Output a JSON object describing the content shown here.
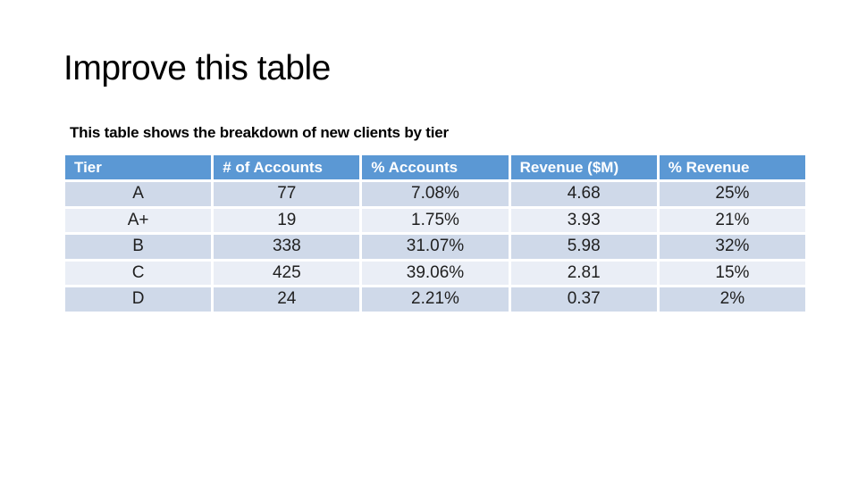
{
  "slide": {
    "title": "Improve this table",
    "subtitle": "This table shows the breakdown of new clients by tier"
  },
  "table": {
    "columns": [
      "Tier",
      "# of Accounts",
      "% Accounts",
      "Revenue ($M)",
      "% Revenue"
    ],
    "rows": [
      {
        "tier": "A",
        "accounts": "77",
        "pct_accounts": "7.08%",
        "revenue": "4.68",
        "pct_revenue": "25%"
      },
      {
        "tier": "A+",
        "accounts": "19",
        "pct_accounts": "1.75%",
        "revenue": "3.93",
        "pct_revenue": "21%"
      },
      {
        "tier": "B",
        "accounts": "338",
        "pct_accounts": "31.07%",
        "revenue": "5.98",
        "pct_revenue": "32%"
      },
      {
        "tier": "C",
        "accounts": "425",
        "pct_accounts": "39.06%",
        "revenue": "2.81",
        "pct_revenue": "15%"
      },
      {
        "tier": "D",
        "accounts": "24",
        "pct_accounts": "2.21%",
        "revenue": "0.37",
        "pct_revenue": "2%"
      }
    ]
  },
  "colors": {
    "header_bg": "#5b98d4",
    "header_text": "#ffffff",
    "band_dark": "#cfd9e9",
    "band_light": "#eaeef6",
    "body_text": "#1f1f1f",
    "title_text": "#000000",
    "slide_bg": "#ffffff"
  }
}
